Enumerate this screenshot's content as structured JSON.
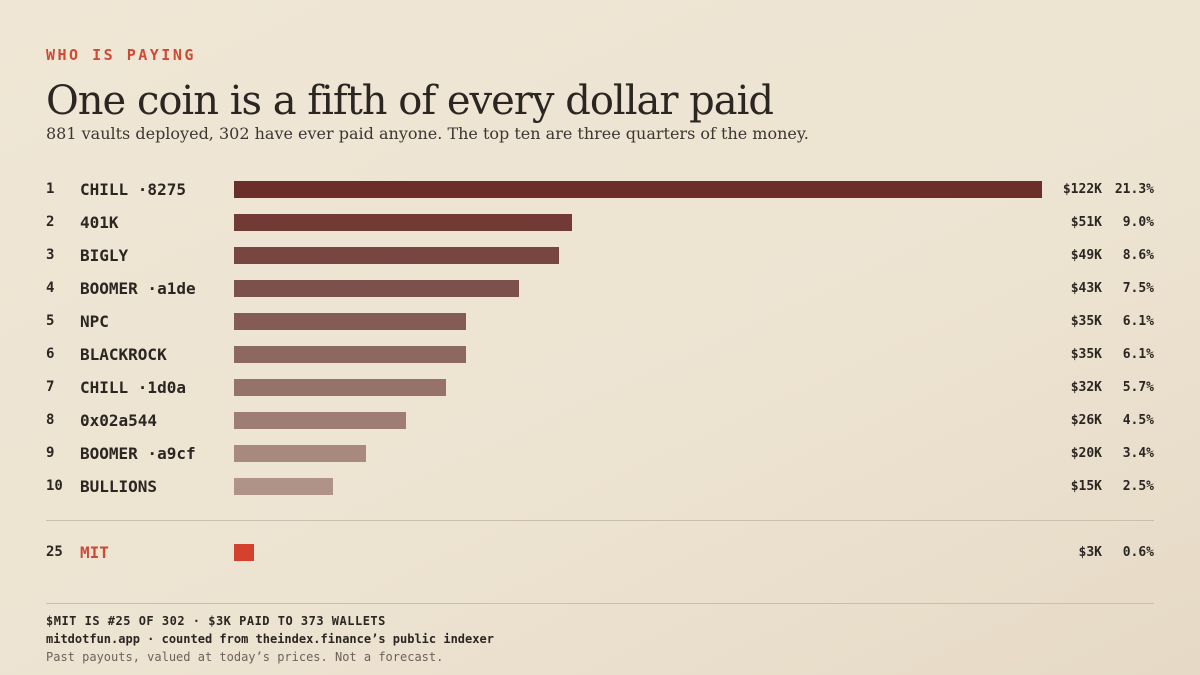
{
  "header": {
    "kicker": "WHO IS PAYING",
    "title": "One coin is a fifth of every dollar paid",
    "subtitle": "881 vaults deployed, 302 have ever paid anyone. The top ten are three quarters of the money."
  },
  "chart_data": {
    "type": "bar",
    "orientation": "horizontal",
    "value_unit": "USD (thousands)",
    "rows": [
      {
        "rank": "1",
        "label": "CHILL ·8275",
        "value": 122,
        "amount_label": "$122K",
        "share_label": "21.3%",
        "color": "#6b2e29"
      },
      {
        "rank": "2",
        "label": "401K",
        "value": 51,
        "amount_label": "$51K",
        "share_label": "9.0%",
        "color": "#713a34"
      },
      {
        "rank": "3",
        "label": "BIGLY",
        "value": 49,
        "amount_label": "$49K",
        "share_label": "8.6%",
        "color": "#774640"
      },
      {
        "rank": "4",
        "label": "BOOMER ·a1de",
        "value": 43,
        "amount_label": "$43K",
        "share_label": "7.5%",
        "color": "#7d514b"
      },
      {
        "rank": "5",
        "label": "NPC",
        "value": 35,
        "amount_label": "$35K",
        "share_label": "6.1%",
        "color": "#855c55"
      },
      {
        "rank": "6",
        "label": "BLACKROCK",
        "value": 35,
        "amount_label": "$35K",
        "share_label": "6.1%",
        "color": "#8d6860"
      },
      {
        "rank": "7",
        "label": "CHILL ·1d0a",
        "value": 32,
        "amount_label": "$32K",
        "share_label": "5.7%",
        "color": "#96736a"
      },
      {
        "rank": "8",
        "label": "0x02a544",
        "value": 26,
        "amount_label": "$26K",
        "share_label": "4.5%",
        "color": "#9e7e74"
      },
      {
        "rank": "9",
        "label": "BOOMER ·a9cf",
        "value": 20,
        "amount_label": "$20K",
        "share_label": "3.4%",
        "color": "#a7897e"
      },
      {
        "rank": "10",
        "label": "BULLIONS",
        "value": 15,
        "amount_label": "$15K",
        "share_label": "2.5%",
        "color": "#af9388"
      }
    ],
    "highlight": {
      "rank": "25",
      "label": "MIT",
      "value": 3,
      "amount_label": "$3K",
      "share_label": "0.6%",
      "color": "#d4412f"
    }
  },
  "footer": {
    "line1": "$MIT IS #25 OF 302 · $3K PAID TO 373 WALLETS",
    "line2": "mitdotfun.app · counted from theindex.finance’s public indexer",
    "line3": "Past payouts, valued at today’s prices. Not a forecast."
  }
}
